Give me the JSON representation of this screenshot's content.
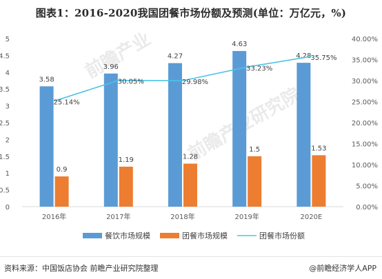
{
  "title": "图表1：2016-2020我国团餐市场份额及预测(单位：万亿元，%)",
  "watermark": {
    "text1": "前瞻产业",
    "text2": "前瞻产业研究院"
  },
  "footer": {
    "source": "资料来源：中国饭店协会 前瞻产业研究院整理",
    "brand": "@前瞻经济学人APP"
  },
  "colors": {
    "bar1": "#5b9bd5",
    "bar2": "#ed7d31",
    "line": "#4bc3e6",
    "axis": "#d9d9d9",
    "text": "#595959"
  },
  "chart_data": {
    "type": "bar",
    "categories": [
      "2016年",
      "2017年",
      "2018年",
      "2019年",
      "2020E"
    ],
    "series": [
      {
        "name": "餐饮市场规模",
        "type": "bar",
        "axis": "left",
        "values": [
          3.58,
          3.96,
          4.27,
          4.63,
          4.28
        ],
        "labels": [
          "3.58",
          "3.96",
          "4.27",
          "4.63",
          "4.28"
        ]
      },
      {
        "name": "团餐市场规模",
        "type": "bar",
        "axis": "left",
        "values": [
          0.9,
          1.19,
          1.28,
          1.5,
          1.53
        ],
        "labels": [
          "0.9",
          "1.19",
          "1.28",
          "1.5",
          "1.53"
        ]
      },
      {
        "name": "团餐市场份额",
        "type": "line",
        "axis": "right",
        "values": [
          25.14,
          30.05,
          29.98,
          33.23,
          35.75
        ],
        "labels": [
          "25.14%",
          "30.05%",
          "29.98%",
          "33.23%",
          "35.75%"
        ]
      }
    ],
    "y_left": {
      "min": 0,
      "max": 5,
      "ticks": [
        "0",
        "0.5",
        "1",
        "1.5",
        "2",
        "2.5",
        "3",
        "3.5",
        "4",
        "4.5",
        "5"
      ]
    },
    "y_right": {
      "min": 0,
      "max": 40,
      "ticks": [
        "0.00%",
        "5.00%",
        "10.00%",
        "15.00%",
        "20.00%",
        "25.00%",
        "30.00%",
        "35.00%",
        "40.00%"
      ]
    },
    "legend_position": "bottom",
    "grid": false
  }
}
